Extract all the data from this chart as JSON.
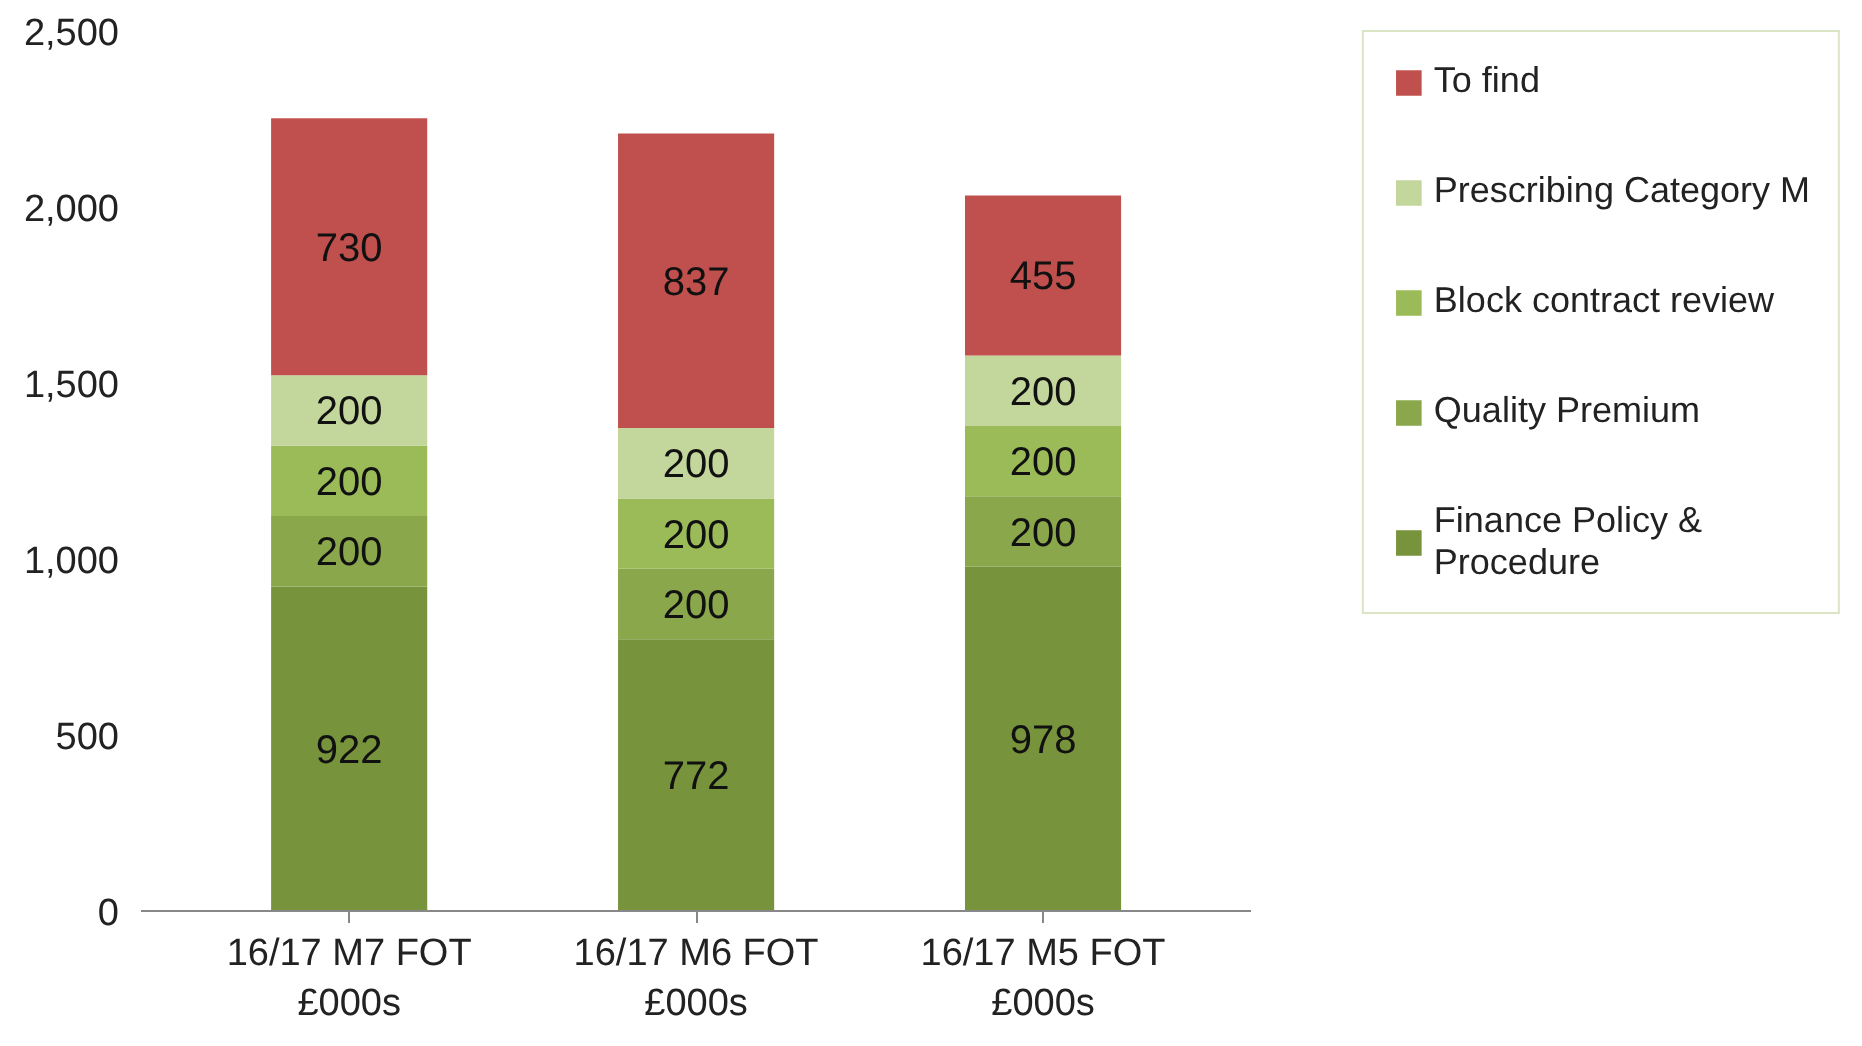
{
  "chart_data": {
    "type": "bar",
    "stacked": true,
    "categories": [
      "16/17 M7 FOT\n£000s",
      "16/17 M6 FOT\n£000s",
      "16/17 M5 FOT\n£000s"
    ],
    "series": [
      {
        "name": "Finance Policy &\nProcedure",
        "color": "#77933c",
        "values": [
          922,
          772,
          978
        ]
      },
      {
        "name": "Quality Premium",
        "color": "#8aa84b",
        "values": [
          200,
          200,
          200
        ]
      },
      {
        "name": "Block contract review",
        "color": "#9bbb59",
        "values": [
          200,
          200,
          200
        ]
      },
      {
        "name": "Prescribing Category M",
        "color": "#c3d69b",
        "values": [
          200,
          200,
          200
        ]
      },
      {
        "name": "To find",
        "color": "#c0504d",
        "values": [
          730,
          837,
          455
        ]
      }
    ],
    "ylim": [
      0,
      2500
    ],
    "yticks": [
      {
        "value": 0,
        "label": "0"
      },
      {
        "value": 500,
        "label": "500"
      },
      {
        "value": 1000,
        "label": "1,000"
      },
      {
        "value": 1500,
        "label": "1,500"
      },
      {
        "value": 2000,
        "label": "2,000"
      },
      {
        "value": 2500,
        "label": "2,500"
      }
    ],
    "data_labels": true,
    "legend": "right",
    "grid": false
  }
}
